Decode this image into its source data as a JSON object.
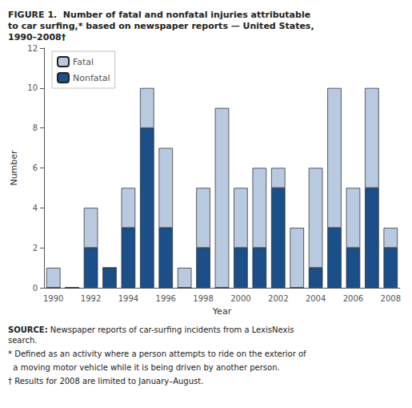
{
  "chart_data": {
    "type": "bar",
    "title": "FIGURE 1.  Number of fatal and nonfatal injuries attributable\nto car surfing,* based on newspaper reports — United States,\n1990–2008†",
    "categories": [
      "1990",
      null,
      "1992",
      null,
      "1994",
      null,
      "1996",
      null,
      "1998",
      null,
      "2000",
      null,
      "2002",
      null,
      "2004",
      null,
      "2006",
      null,
      "2008"
    ],
    "series": [
      {
        "name": "Nonfatal",
        "color": "#1b4f8a",
        "values": [
          0,
          0,
          2,
          1,
          3,
          8,
          3,
          0,
          2,
          0,
          2,
          2,
          5,
          0,
          1,
          3,
          2,
          5,
          2
        ]
      },
      {
        "name": "Fatal",
        "color": "#b8c9e0",
        "values": [
          1,
          0,
          2,
          0,
          2,
          2,
          4,
          1,
          3,
          9,
          3,
          4,
          1,
          3,
          5,
          7,
          3,
          5,
          1
        ]
      }
    ],
    "stacked": true,
    "xlabel": "Year",
    "ylabel": "Number",
    "ylim": [
      0,
      12
    ],
    "yticks": [
      0,
      2,
      4,
      6,
      8,
      10,
      12
    ],
    "grid": false,
    "legend": "upper left",
    "annotations": [
      "SOURCE: Newspaper reports of car-surfing incidents from a LexisNexis\nsearch.",
      "* Defined as an activity where a person attempts to ride on the exterior of",
      "  a moving motor vehicle while it is being driven by another person.",
      "† Results for 2008 are limited to January–August."
    ]
  }
}
